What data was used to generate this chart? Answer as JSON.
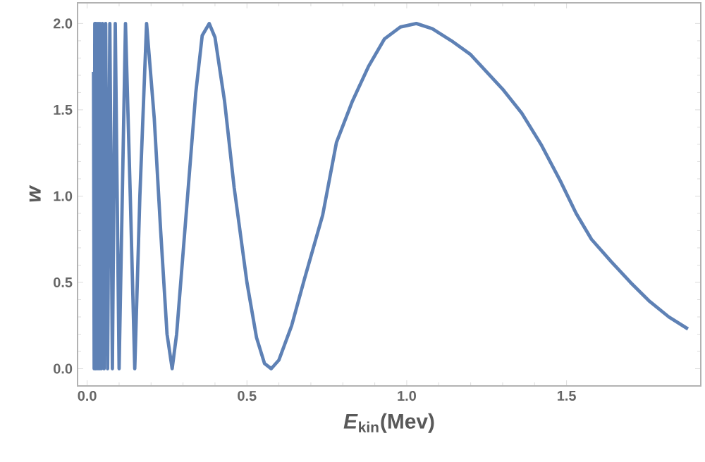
{
  "chart_data": {
    "type": "line",
    "xlabel": "*E*$_{kin}$(Mev)",
    "ylabel": "w",
    "xlim": [
      -0.03,
      1.92
    ],
    "ylim": [
      -0.1,
      2.12
    ],
    "xticks": [
      {
        "value": 0,
        "label": "0.0"
      },
      {
        "value": 0.5,
        "label": "0.5"
      },
      {
        "value": 1,
        "label": "1.0"
      },
      {
        "value": 1.5,
        "label": "1.5"
      }
    ],
    "yticks": [
      {
        "value": 0,
        "label": "0.0"
      },
      {
        "value": 0.5,
        "label": "0.5"
      },
      {
        "value": 1,
        "label": "1.0"
      },
      {
        "value": 1.5,
        "label": "1.5"
      },
      {
        "value": 2,
        "label": "2.0"
      }
    ],
    "grid": false,
    "marker": "none",
    "line_style": "solid",
    "series": [
      {
        "color": "#5e81b5",
        "x": [
          0.02,
          0.022,
          0.024,
          0.026,
          0.028,
          0.031,
          0.034,
          0.037,
          0.04,
          0.044,
          0.048,
          0.053,
          0.058,
          0.064,
          0.071,
          0.079,
          0.088,
          0.1,
          0.12,
          0.135,
          0.149,
          0.165,
          0.186,
          0.21,
          0.23,
          0.25,
          0.266,
          0.28,
          0.31,
          0.34,
          0.36,
          0.382,
          0.4,
          0.43,
          0.46,
          0.5,
          0.53,
          0.555,
          0.576,
          0.6,
          0.64,
          0.68,
          0.737,
          0.78,
          0.83,
          0.88,
          0.93,
          0.98,
          1.03,
          1.08,
          1.14,
          1.2,
          1.25,
          1.3,
          1.36,
          1.42,
          1.48,
          1.53,
          1.578,
          1.64,
          1.7,
          1.76,
          1.82,
          1.88
        ],
        "values": [
          1.72,
          0,
          2,
          0,
          2,
          0,
          2,
          0,
          2,
          0,
          2,
          0,
          2,
          0,
          2,
          0,
          2,
          0,
          2,
          1,
          0,
          1,
          2,
          1.45,
          0.8,
          0.2,
          0,
          0.2,
          0.9,
          1.6,
          1.93,
          2,
          1.92,
          1.55,
          1.05,
          0.5,
          0.18,
          0.03,
          0,
          0.05,
          0.25,
          0.52,
          0.89,
          1.31,
          1.55,
          1.75,
          1.91,
          1.98,
          2,
          1.97,
          1.9,
          1.82,
          1.72,
          1.62,
          1.48,
          1.3,
          1.09,
          0.9,
          0.75,
          0.62,
          0.5,
          0.39,
          0.3,
          0.23
        ]
      }
    ]
  }
}
